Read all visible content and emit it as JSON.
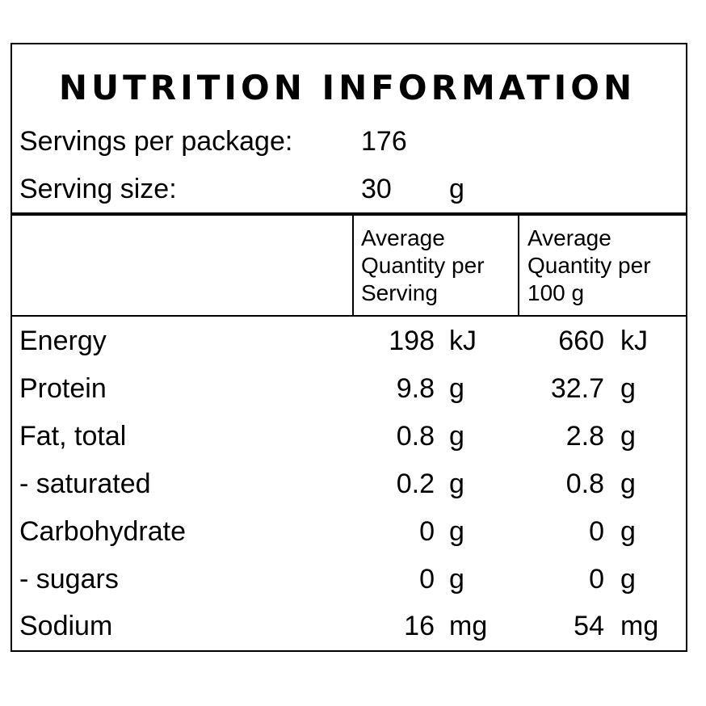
{
  "title": "NUTRITION INFORMATION",
  "servings_label": "Servings per package:",
  "servings_value": "176",
  "serving_size_label": "Serving size:",
  "serving_size_value": "30",
  "serving_size_unit": "g",
  "col_serving_header": [
    "Average",
    "Quantity per",
    "Serving"
  ],
  "col_100g_header": [
    "Average",
    "Quantity per",
    "100 g"
  ],
  "rows": [
    {
      "name": "Energy",
      "per_serving": "198",
      "per_serving_unit": "kJ",
      "per_100g": "660",
      "per_100g_unit": "kJ"
    },
    {
      "name": "Protein",
      "per_serving": "9.8",
      "per_serving_unit": "g",
      "per_100g": "32.7",
      "per_100g_unit": "g"
    },
    {
      "name": "Fat, total",
      "per_serving": "0.8",
      "per_serving_unit": "g",
      "per_100g": "2.8",
      "per_100g_unit": "g"
    },
    {
      "name": "- saturated",
      "per_serving": "0.2",
      "per_serving_unit": "g",
      "per_100g": "0.8",
      "per_100g_unit": "g"
    },
    {
      "name": "Carbohydrate",
      "per_serving": "0",
      "per_serving_unit": "g",
      "per_100g": "0",
      "per_100g_unit": "g"
    },
    {
      "name": "- sugars",
      "per_serving": "0",
      "per_serving_unit": "g",
      "per_100g": "0",
      "per_100g_unit": "g"
    },
    {
      "name": "Sodium",
      "per_serving": "16",
      "per_serving_unit": "mg",
      "per_100g": "54",
      "per_100g_unit": "mg"
    }
  ]
}
